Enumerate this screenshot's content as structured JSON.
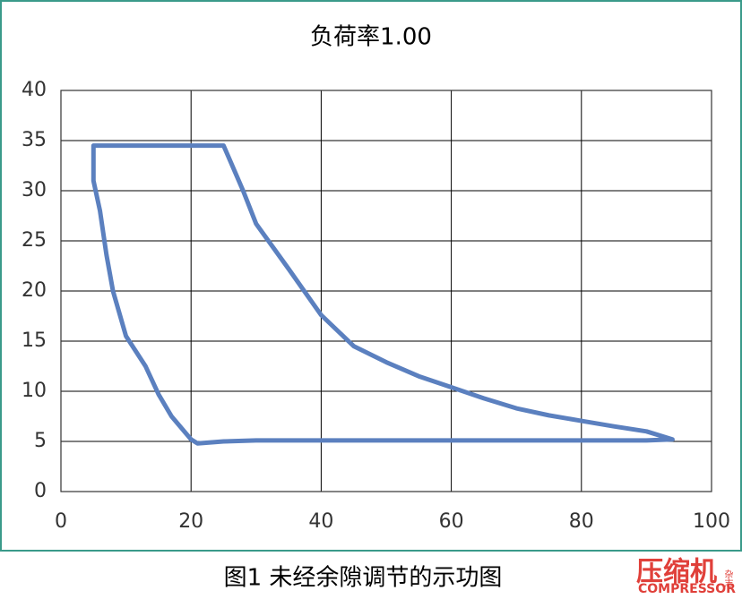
{
  "chart_data": {
    "type": "line",
    "title": "负荷率1.00",
    "x": [
      5,
      25,
      26,
      28,
      30,
      35,
      40,
      45,
      50,
      55,
      60,
      65,
      70,
      75,
      80,
      85,
      90,
      94,
      90,
      60,
      30,
      25,
      21,
      20,
      17,
      15,
      13,
      10,
      8,
      7,
      6,
      5,
      5
    ],
    "values": [
      34.5,
      34.5,
      33,
      30,
      26.7,
      22.2,
      17.6,
      14.5,
      12.9,
      11.5,
      10.4,
      9.3,
      8.3,
      7.6,
      7.05,
      6.5,
      6,
      5.2,
      5.1,
      5.1,
      5.1,
      5,
      4.8,
      5.2,
      7.5,
      9.7,
      12.5,
      15.5,
      20,
      23.6,
      28,
      31,
      34.5
    ],
    "color": "#5b80bf",
    "xlim": [
      0,
      100
    ],
    "xticks": [
      0,
      20,
      40,
      60,
      80,
      100
    ],
    "ylim": [
      0,
      40
    ],
    "yticks": [
      0,
      5,
      10,
      15,
      20,
      25,
      30,
      35,
      40
    ],
    "grid": true
  },
  "caption": "图1 未经余隙调节的示功图",
  "watermark": {
    "name": "压缩机",
    "sub": "杂志",
    "english": "COMPRESSOR"
  }
}
